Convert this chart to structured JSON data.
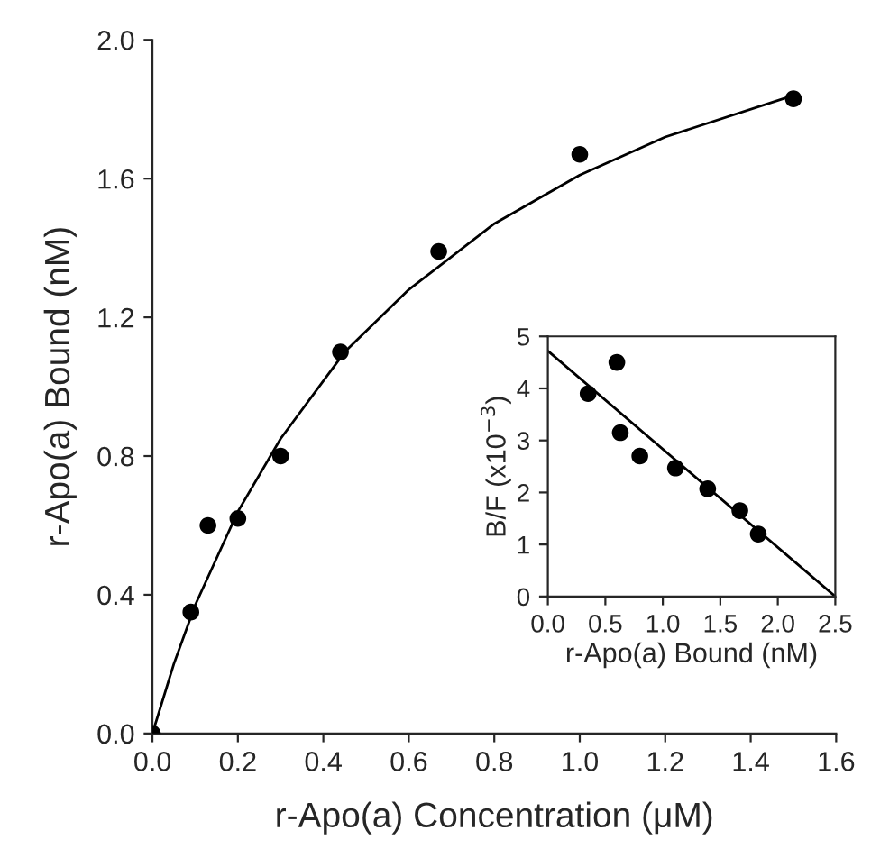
{
  "chart_data": [
    {
      "type": "scatter",
      "xlabel": "r-Apo(a) Concentration (μM)",
      "ylabel": "r-Apo(a) Bound (nM)",
      "xlim": [
        0,
        1.6
      ],
      "ylim": [
        0,
        2.0
      ],
      "xticks": [
        {
          "value": 0,
          "label": "0.0"
        },
        0.2,
        0.4,
        0.6,
        0.8,
        {
          "value": 1,
          "label": "1.0"
        },
        1.2,
        1.4,
        1.6
      ],
      "yticks": [
        {
          "value": 0,
          "label": "0.0"
        },
        0.4,
        0.8,
        1.2,
        1.6,
        {
          "value": 2,
          "label": "2.0"
        }
      ],
      "series": [
        {
          "color": "#000000",
          "marker": "circle",
          "x": [
            0,
            0.09,
            0.13,
            0.2,
            0.3,
            0.44,
            0.67,
            1.0,
            1.5
          ],
          "values": [
            0,
            0.35,
            0.6,
            0.62,
            0.8,
            1.1,
            1.39,
            1.67,
            1.83
          ]
        },
        {
          "type": "line",
          "color": "#000000",
          "line_style": "solid",
          "x": [
            0,
            0.05,
            0.1,
            0.2,
            0.3,
            0.45,
            0.6,
            0.8,
            1.0,
            1.2,
            1.5
          ],
          "values": [
            0,
            0.2,
            0.37,
            0.64,
            0.85,
            1.1,
            1.28,
            1.47,
            1.61,
            1.72,
            1.84
          ]
        }
      ]
    },
    {
      "type": "scatter",
      "xlabel": "r-Apo(a) Bound (nM)",
      "ylabel": "B/F (x10$^{−3}$)",
      "xlim": [
        0,
        2.5
      ],
      "ylim": [
        0,
        5
      ],
      "xticks": [
        {
          "value": 0,
          "label": "0.0"
        },
        0.5,
        {
          "value": 1,
          "label": "1.0"
        },
        1.5,
        {
          "value": 2,
          "label": "2.0"
        },
        2.5
      ],
      "yticks": [
        0,
        1,
        2,
        3,
        4,
        5
      ],
      "series": [
        {
          "color": "#000000",
          "marker": "circle",
          "x": [
            0.35,
            0.6,
            0.63,
            0.8,
            1.11,
            1.39,
            1.67,
            1.83
          ],
          "values": [
            3.9,
            4.5,
            3.15,
            2.7,
            2.47,
            2.07,
            1.65,
            1.2
          ]
        },
        {
          "type": "line",
          "color": "#000000",
          "line_style": "solid",
          "x": [
            0,
            2.5
          ],
          "values": [
            4.72,
            0
          ]
        }
      ]
    }
  ]
}
